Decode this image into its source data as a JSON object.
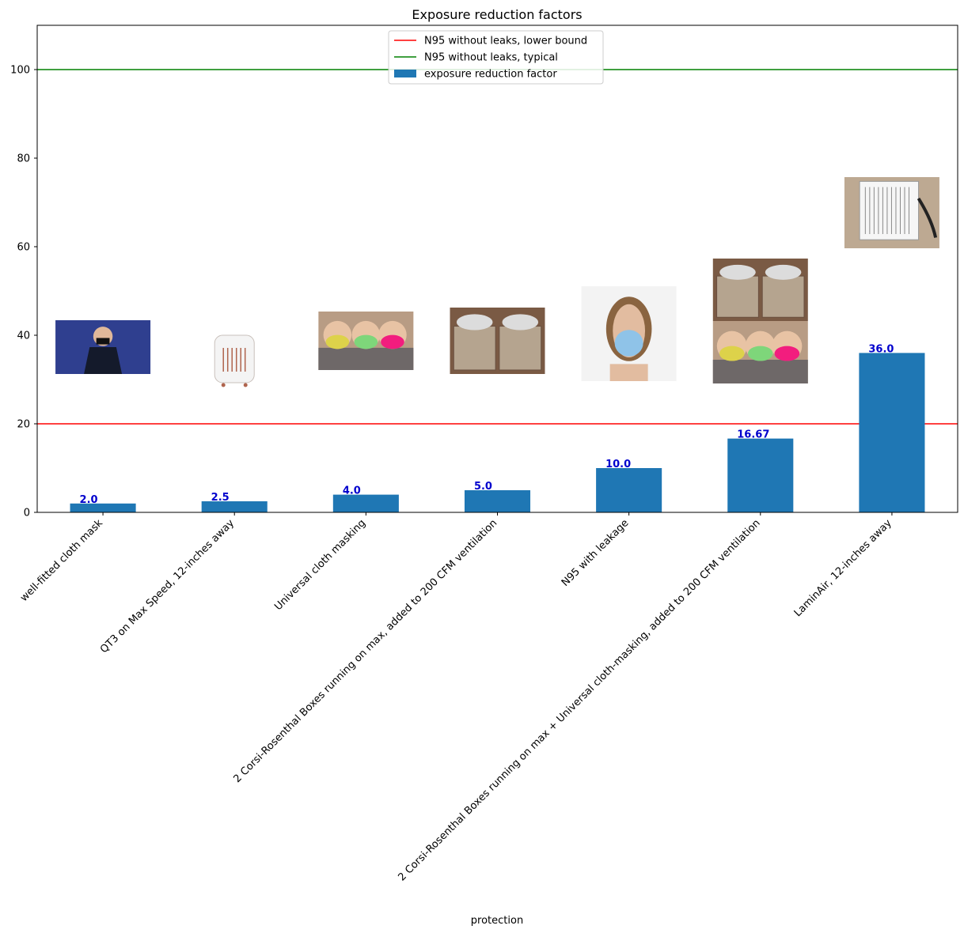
{
  "chart_data": {
    "type": "bar",
    "title": "Exposure reduction factors",
    "xlabel": "protection",
    "ylabel": "",
    "ylim": [
      0,
      110
    ],
    "yticks": [
      0,
      20,
      40,
      60,
      80,
      100
    ],
    "categories": [
      "well-fitted cloth mask",
      "QT3 on Max Speed, 12-inches away",
      "Universal cloth masking",
      "2 Corsi-Rosenthal Boxes running on max, added to 200 CFM ventilation",
      "N95 with leakage",
      "2 Corsi-Rosenthal Boxes running on max + Universal cloth-masking, added to 200 CFM ventilation",
      "LaminAir, 12-inches away"
    ],
    "series": [
      {
        "name": "exposure reduction factor",
        "values": [
          2.0,
          2.5,
          4.0,
          5.0,
          10.0,
          16.67,
          36.0
        ],
        "color": "#1f77b4"
      }
    ],
    "value_labels": [
      "2.0",
      "2.5",
      "4.0",
      "5.0",
      "10.0",
      "16.67",
      "36.0"
    ],
    "value_label_color": "#0000cd",
    "reference_lines": [
      {
        "name": "N95 without leaks, lower bound",
        "y": 20,
        "color": "#ff0000"
      },
      {
        "name": "N95 without leaks, typical",
        "y": 100,
        "color": "#008000"
      }
    ],
    "legend_position": "upper center",
    "grid": false,
    "thumbnails": [
      {
        "icon": "person-wearing-mask-photo"
      },
      {
        "icon": "portable-air-purifier-photo"
      },
      {
        "icon": "people-in-cloth-masks-photo"
      },
      {
        "icon": "corsi-rosenthal-boxes-photo"
      },
      {
        "icon": "woman-in-n95-mask-photo"
      },
      {
        "icon": "boxes-and-masked-people-photo"
      },
      {
        "icon": "laminair-filter-photo"
      }
    ]
  }
}
